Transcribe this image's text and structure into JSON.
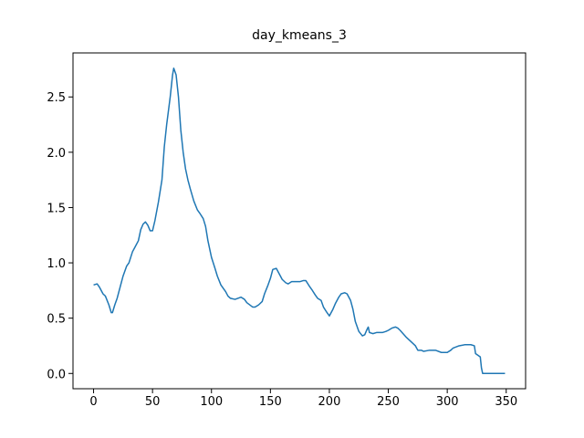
{
  "chart_data": {
    "type": "line",
    "title": "day_kmeans_3",
    "x": [
      0,
      3,
      5,
      8,
      10,
      13,
      15,
      16,
      18,
      20,
      25,
      28,
      30,
      33,
      35,
      38,
      40,
      42,
      44,
      46,
      48,
      50,
      52,
      55,
      58,
      60,
      62,
      65,
      67,
      68,
      70,
      72,
      74,
      76,
      78,
      80,
      82,
      85,
      88,
      90,
      93,
      95,
      97,
      100,
      103,
      105,
      108,
      112,
      114,
      116,
      120,
      125,
      128,
      130,
      135,
      137,
      140,
      143,
      145,
      148,
      150,
      152,
      155,
      158,
      160,
      163,
      165,
      168,
      170,
      175,
      178,
      180,
      183,
      185,
      188,
      190,
      193,
      195,
      198,
      200,
      203,
      205,
      208,
      210,
      213,
      215,
      218,
      220,
      222,
      225,
      228,
      230,
      232,
      233,
      234,
      237,
      240,
      245,
      248,
      250,
      253,
      256,
      258,
      260,
      265,
      270,
      273,
      275,
      278,
      280,
      285,
      290,
      295,
      300,
      303,
      305,
      310,
      315,
      320,
      323,
      324,
      328,
      329,
      330,
      349
    ],
    "series": [
      {
        "color": "#1f77b4",
        "values": [
          0.8,
          0.81,
          0.78,
          0.72,
          0.7,
          0.62,
          0.55,
          0.55,
          0.62,
          0.68,
          0.88,
          0.97,
          1.0,
          1.1,
          1.14,
          1.2,
          1.3,
          1.35,
          1.37,
          1.34,
          1.29,
          1.29,
          1.38,
          1.55,
          1.75,
          2.05,
          2.25,
          2.5,
          2.7,
          2.76,
          2.7,
          2.5,
          2.2,
          2.0,
          1.85,
          1.75,
          1.67,
          1.56,
          1.48,
          1.45,
          1.4,
          1.33,
          1.2,
          1.05,
          0.95,
          0.88,
          0.8,
          0.74,
          0.7,
          0.68,
          0.67,
          0.69,
          0.67,
          0.64,
          0.6,
          0.6,
          0.62,
          0.65,
          0.72,
          0.8,
          0.86,
          0.94,
          0.95,
          0.89,
          0.85,
          0.82,
          0.81,
          0.83,
          0.83,
          0.83,
          0.84,
          0.84,
          0.79,
          0.76,
          0.71,
          0.68,
          0.66,
          0.6,
          0.55,
          0.52,
          0.58,
          0.63,
          0.69,
          0.72,
          0.73,
          0.72,
          0.66,
          0.58,
          0.47,
          0.38,
          0.34,
          0.35,
          0.4,
          0.42,
          0.37,
          0.36,
          0.37,
          0.37,
          0.38,
          0.39,
          0.41,
          0.42,
          0.41,
          0.39,
          0.33,
          0.28,
          0.25,
          0.21,
          0.21,
          0.2,
          0.21,
          0.21,
          0.19,
          0.19,
          0.21,
          0.23,
          0.25,
          0.26,
          0.26,
          0.25,
          0.18,
          0.15,
          0.05,
          0.0,
          0.0
        ]
      }
    ],
    "xlim": [
      -17.45,
      366.45
    ],
    "xticks": [
      0,
      50,
      100,
      150,
      200,
      250,
      300,
      350
    ],
    "ylim": [
      -0.138,
      2.898
    ],
    "yticks": [
      {
        "value": 0,
        "label": "0.0"
      },
      0.5,
      {
        "value": 1,
        "label": "1.0"
      },
      1.5,
      {
        "value": 2,
        "label": "2.0"
      },
      2.5
    ]
  }
}
